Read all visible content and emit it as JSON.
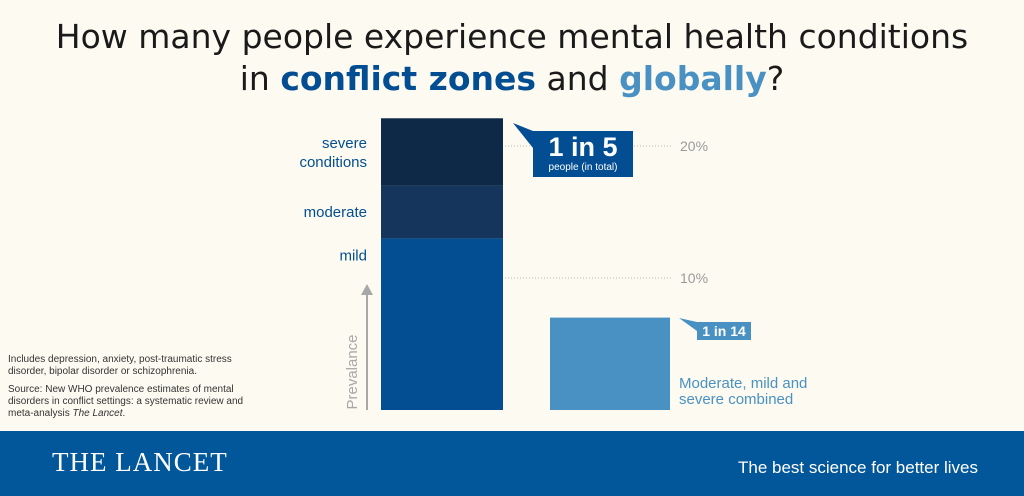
{
  "title": {
    "line1": "How many people experience mental health conditions",
    "line2_prefix": "in ",
    "highlight1": "conflict zones",
    "connector": " and ",
    "highlight2": "globally",
    "suffix": "?"
  },
  "chart_data": {
    "type": "bar",
    "ylabel": "Prevalance",
    "y_ticks": [
      {
        "value": 20,
        "label": "20%"
      },
      {
        "value": 10,
        "label": "10%"
      }
    ],
    "bars": [
      {
        "category": "conflict zones",
        "total": 22.1,
        "segments": [
          {
            "name": "mild",
            "value": 13.0,
            "color": "#034e93"
          },
          {
            "name": "moderate",
            "value": 4.0,
            "color": "#16355c"
          },
          {
            "name": "severe conditions",
            "value": 5.1,
            "color": "#0e2848"
          }
        ],
        "callout": {
          "big": "1 in 5",
          "small": "people (in total)",
          "color": "#034e93"
        }
      },
      {
        "category": "globally",
        "total": 7.0,
        "segments": [
          {
            "name": "Moderate, mild and severe combined",
            "value": 7.0,
            "color": "#4a91c3"
          }
        ],
        "callout": {
          "big": "1 in 14",
          "small": "",
          "color": "#4a91c3"
        }
      }
    ],
    "segment_labels": {
      "severe": [
        "severe",
        "conditions"
      ],
      "moderate": [
        "moderate"
      ],
      "mild": [
        "mild"
      ],
      "combined": [
        "Moderate, mild and",
        "severe combined"
      ]
    }
  },
  "notes": {
    "line1": "Includes depression, anxiety, post-traumatic stress disorder, bipolar disorder or schizophrenia.",
    "source_prefix": "Source: New WHO prevalence estimates of mental disorders in conflict settings: a systematic review and meta-analysis ",
    "source_journal": "The Lancet",
    "source_suffix": "."
  },
  "footer": {
    "brand": "THE LANCET",
    "tagline": "The best science for better lives",
    "color": "#02569a"
  }
}
